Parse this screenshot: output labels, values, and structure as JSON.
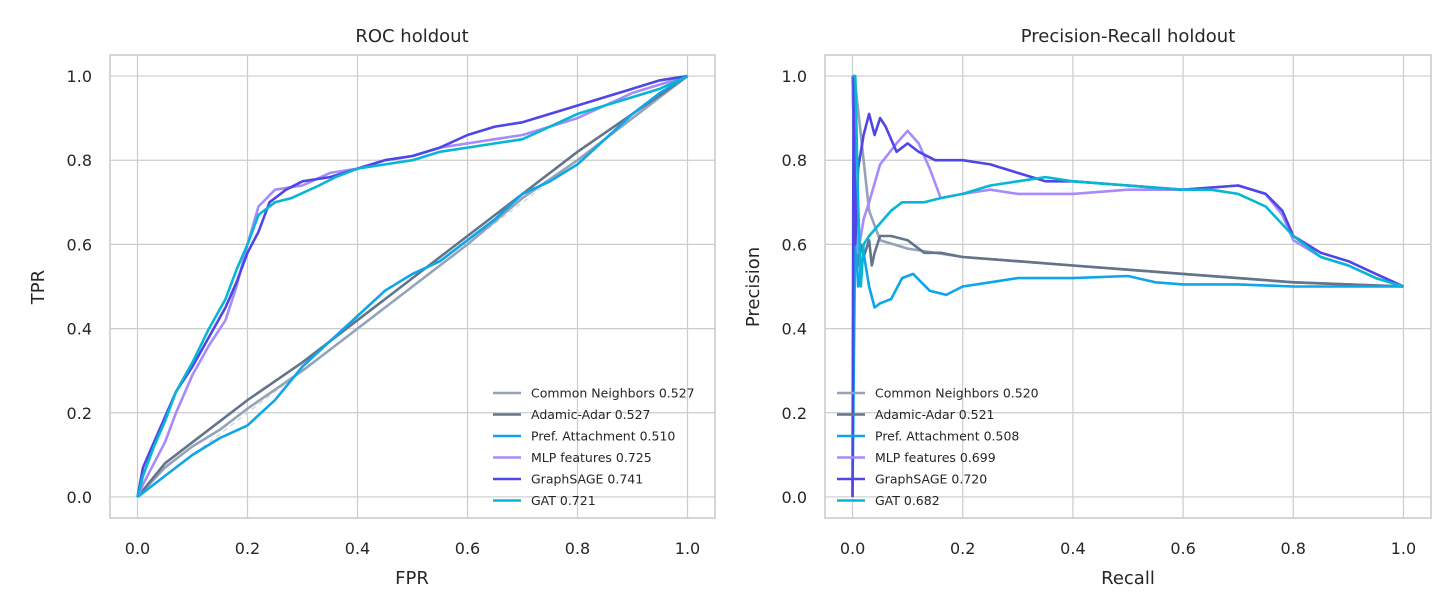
{
  "chart_data": [
    {
      "type": "line",
      "title": "ROC holdout",
      "xlabel": "FPR",
      "ylabel": "TPR",
      "xlim": [
        -0.05,
        1.05
      ],
      "ylim": [
        -0.05,
        1.05
      ],
      "xticks": [
        "0.0",
        "0.2",
        "0.4",
        "0.6",
        "0.8",
        "1.0"
      ],
      "yticks": [
        "0.0",
        "0.2",
        "0.4",
        "0.6",
        "0.8",
        "1.0"
      ],
      "grid": true,
      "legend_position": "lower-right",
      "reference_line": {
        "x": [
          0,
          1
        ],
        "y": [
          0,
          1
        ],
        "color": "#d1d5db",
        "style": "dashed"
      },
      "series": [
        {
          "name": "Common Neighbors 0.527",
          "color": "#94a3b8",
          "x": [
            0,
            0.05,
            0.1,
            0.15,
            0.2,
            0.3,
            0.4,
            0.5,
            0.6,
            0.7,
            0.8,
            0.9,
            1.0
          ],
          "y": [
            0,
            0.07,
            0.12,
            0.16,
            0.21,
            0.3,
            0.4,
            0.5,
            0.6,
            0.71,
            0.8,
            0.9,
            1.0
          ]
        },
        {
          "name": "Adamic-Adar 0.527",
          "color": "#64748b",
          "x": [
            0,
            0.05,
            0.1,
            0.15,
            0.2,
            0.3,
            0.4,
            0.5,
            0.6,
            0.7,
            0.8,
            0.9,
            1.0
          ],
          "y": [
            0,
            0.08,
            0.13,
            0.18,
            0.23,
            0.32,
            0.42,
            0.52,
            0.62,
            0.72,
            0.82,
            0.91,
            1.0
          ]
        },
        {
          "name": "Pref. Attachment 0.510",
          "color": "#0ea5e9",
          "x": [
            0,
            0.05,
            0.1,
            0.15,
            0.2,
            0.25,
            0.3,
            0.35,
            0.4,
            0.45,
            0.5,
            0.55,
            0.6,
            0.65,
            0.7,
            0.75,
            0.8,
            0.85,
            0.9,
            0.95,
            1.0
          ],
          "y": [
            0,
            0.05,
            0.1,
            0.14,
            0.17,
            0.23,
            0.31,
            0.37,
            0.43,
            0.49,
            0.53,
            0.56,
            0.61,
            0.66,
            0.72,
            0.75,
            0.79,
            0.85,
            0.91,
            0.96,
            1.0
          ]
        },
        {
          "name": "MLP features 0.725",
          "color": "#a78bfa",
          "x": [
            0,
            0.01,
            0.03,
            0.05,
            0.07,
            0.1,
            0.13,
            0.16,
            0.18,
            0.2,
            0.22,
            0.25,
            0.3,
            0.35,
            0.4,
            0.45,
            0.5,
            0.55,
            0.6,
            0.65,
            0.7,
            0.75,
            0.8,
            0.85,
            0.9,
            0.95,
            1.0
          ],
          "y": [
            0,
            0.03,
            0.08,
            0.13,
            0.2,
            0.29,
            0.36,
            0.42,
            0.5,
            0.6,
            0.69,
            0.73,
            0.74,
            0.77,
            0.78,
            0.8,
            0.81,
            0.83,
            0.84,
            0.85,
            0.86,
            0.88,
            0.9,
            0.93,
            0.96,
            0.98,
            1.0
          ]
        },
        {
          "name": "GraphSAGE 0.741",
          "color": "#4f46e5",
          "x": [
            0,
            0.01,
            0.03,
            0.05,
            0.07,
            0.1,
            0.13,
            0.16,
            0.18,
            0.2,
            0.22,
            0.24,
            0.27,
            0.3,
            0.35,
            0.4,
            0.45,
            0.5,
            0.55,
            0.6,
            0.65,
            0.7,
            0.75,
            0.8,
            0.85,
            0.9,
            0.95,
            1.0
          ],
          "y": [
            0,
            0.07,
            0.13,
            0.19,
            0.25,
            0.31,
            0.38,
            0.45,
            0.51,
            0.58,
            0.63,
            0.7,
            0.73,
            0.75,
            0.76,
            0.78,
            0.8,
            0.81,
            0.83,
            0.86,
            0.88,
            0.89,
            0.91,
            0.93,
            0.95,
            0.97,
            0.99,
            1.0
          ]
        },
        {
          "name": "GAT 0.721",
          "color": "#06b6d4",
          "x": [
            0,
            0.01,
            0.03,
            0.05,
            0.07,
            0.1,
            0.13,
            0.16,
            0.18,
            0.2,
            0.22,
            0.25,
            0.28,
            0.33,
            0.36,
            0.4,
            0.45,
            0.5,
            0.55,
            0.6,
            0.65,
            0.7,
            0.75,
            0.8,
            0.85,
            0.9,
            0.95,
            1.0
          ],
          "y": [
            0,
            0.05,
            0.12,
            0.18,
            0.25,
            0.32,
            0.4,
            0.47,
            0.54,
            0.6,
            0.67,
            0.7,
            0.71,
            0.74,
            0.76,
            0.78,
            0.79,
            0.8,
            0.82,
            0.83,
            0.84,
            0.85,
            0.88,
            0.91,
            0.93,
            0.95,
            0.97,
            1.0
          ]
        }
      ]
    },
    {
      "type": "line",
      "title": "Precision-Recall holdout",
      "xlabel": "Recall",
      "ylabel": "Precision",
      "xlim": [
        -0.05,
        1.05
      ],
      "ylim": [
        -0.05,
        1.05
      ],
      "xticks": [
        "0.0",
        "0.2",
        "0.4",
        "0.6",
        "0.8",
        "1.0"
      ],
      "yticks": [
        "0.0",
        "0.2",
        "0.4",
        "0.6",
        "0.8",
        "1.0"
      ],
      "grid": true,
      "legend_position": "lower-left",
      "series": [
        {
          "name": "Common Neighbors 0.520",
          "color": "#94a3b8",
          "x": [
            0,
            0.005,
            0.01,
            0.02,
            0.03,
            0.05,
            0.1,
            0.2,
            0.3,
            0.4,
            0.5,
            0.6,
            0.7,
            0.8,
            0.9,
            1.0
          ],
          "y": [
            1.0,
            0.98,
            0.92,
            0.8,
            0.68,
            0.61,
            0.59,
            0.57,
            0.56,
            0.55,
            0.54,
            0.53,
            0.52,
            0.51,
            0.505,
            0.5
          ]
        },
        {
          "name": "Adamic-Adar 0.521",
          "color": "#64748b",
          "x": [
            0,
            0.005,
            0.01,
            0.015,
            0.02,
            0.03,
            0.035,
            0.04,
            0.05,
            0.07,
            0.1,
            0.13,
            0.16,
            0.2,
            0.3,
            0.4,
            0.5,
            0.6,
            0.7,
            0.8,
            0.9,
            1.0
          ],
          "y": [
            1.0,
            0.72,
            0.55,
            0.6,
            0.57,
            0.61,
            0.55,
            0.58,
            0.62,
            0.62,
            0.61,
            0.58,
            0.58,
            0.57,
            0.56,
            0.55,
            0.54,
            0.53,
            0.52,
            0.51,
            0.505,
            0.5
          ]
        },
        {
          "name": "Pref. Attachment 0.508",
          "color": "#0ea5e9",
          "x": [
            0,
            0.005,
            0.01,
            0.02,
            0.03,
            0.04,
            0.05,
            0.07,
            0.09,
            0.11,
            0.14,
            0.17,
            0.2,
            0.25,
            0.3,
            0.4,
            0.5,
            0.55,
            0.6,
            0.7,
            0.8,
            0.9,
            1.0
          ],
          "y": [
            0.0,
            0.65,
            0.5,
            0.58,
            0.5,
            0.45,
            0.46,
            0.47,
            0.52,
            0.53,
            0.49,
            0.48,
            0.5,
            0.51,
            0.52,
            0.52,
            0.525,
            0.51,
            0.505,
            0.505,
            0.5,
            0.5,
            0.5
          ]
        },
        {
          "name": "MLP features 0.699",
          "color": "#a78bfa",
          "x": [
            0,
            0.005,
            0.01,
            0.02,
            0.03,
            0.05,
            0.08,
            0.1,
            0.12,
            0.14,
            0.16,
            0.2,
            0.25,
            0.3,
            0.4,
            0.5,
            0.6,
            0.7,
            0.75,
            0.78,
            0.8,
            0.85,
            0.9,
            0.95,
            1.0
          ],
          "y": [
            1.0,
            0.7,
            0.58,
            0.66,
            0.7,
            0.79,
            0.84,
            0.87,
            0.84,
            0.78,
            0.71,
            0.72,
            0.73,
            0.72,
            0.72,
            0.73,
            0.73,
            0.74,
            0.72,
            0.67,
            0.61,
            0.57,
            0.55,
            0.52,
            0.5
          ]
        },
        {
          "name": "GraphSAGE 0.720",
          "color": "#4f46e5",
          "x": [
            0,
            0.002,
            0.005,
            0.01,
            0.02,
            0.03,
            0.04,
            0.05,
            0.06,
            0.08,
            0.1,
            0.12,
            0.15,
            0.2,
            0.25,
            0.3,
            0.35,
            0.4,
            0.5,
            0.6,
            0.7,
            0.75,
            0.78,
            0.8,
            0.85,
            0.9,
            0.95,
            1.0
          ],
          "y": [
            0.0,
            1.0,
            0.6,
            0.78,
            0.86,
            0.91,
            0.86,
            0.9,
            0.88,
            0.82,
            0.84,
            0.82,
            0.8,
            0.8,
            0.79,
            0.77,
            0.75,
            0.75,
            0.74,
            0.73,
            0.74,
            0.72,
            0.68,
            0.62,
            0.58,
            0.56,
            0.53,
            0.5
          ]
        },
        {
          "name": "GAT 0.682",
          "color": "#06b6d4",
          "x": [
            0,
            0.005,
            0.01,
            0.015,
            0.02,
            0.03,
            0.05,
            0.07,
            0.09,
            0.11,
            0.13,
            0.16,
            0.2,
            0.25,
            0.3,
            0.35,
            0.4,
            0.5,
            0.6,
            0.65,
            0.7,
            0.75,
            0.8,
            0.85,
            0.9,
            0.95,
            1.0
          ],
          "y": [
            1.0,
            1.0,
            0.7,
            0.5,
            0.6,
            0.62,
            0.65,
            0.68,
            0.7,
            0.7,
            0.7,
            0.71,
            0.72,
            0.74,
            0.75,
            0.76,
            0.75,
            0.74,
            0.73,
            0.73,
            0.72,
            0.69,
            0.62,
            0.57,
            0.55,
            0.52,
            0.5
          ]
        }
      ]
    }
  ]
}
